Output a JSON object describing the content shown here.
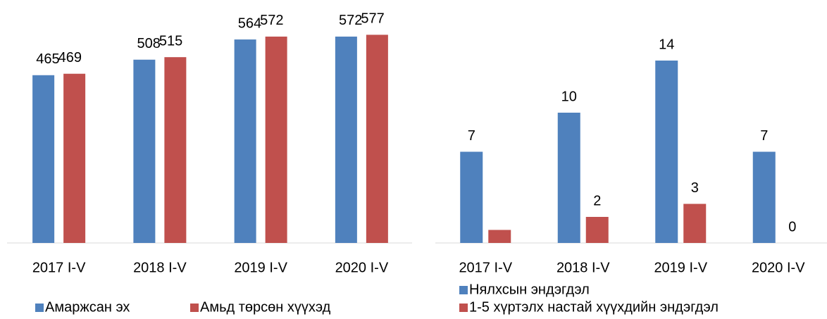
{
  "chart_data": [
    {
      "type": "bar",
      "categories": [
        "2017 I-V",
        "2018 I-V",
        "2019 I-V",
        "2020 I-V"
      ],
      "series": [
        {
          "name": "Амаржсан эх",
          "color": "#4f81bd",
          "values": [
            465,
            508,
            564,
            572
          ]
        },
        {
          "name": "Амьд төрсөн хүүхэд",
          "color": "#c0504d",
          "values": [
            469,
            515,
            572,
            577
          ]
        }
      ],
      "ylim": [
        0,
        650
      ],
      "legend": "bottom"
    },
    {
      "type": "bar",
      "categories": [
        "2017 I-V",
        "2018 I-V",
        "2019 I-V",
        "2020 I-V"
      ],
      "series": [
        {
          "name": "Нялхсын эндэгдэл",
          "color": "#4f81bd",
          "values": [
            7,
            10,
            14,
            7
          ]
        },
        {
          "name": "1-5 хүртэлх настай хүүхдийн эндэгдэл",
          "color": "#c0504d",
          "values": [
            1,
            2,
            3,
            0
          ],
          "value_labels": [
            null,
            "2",
            "3",
            "0"
          ]
        }
      ],
      "ylim": [
        0,
        16
      ],
      "legend": "bottom"
    }
  ]
}
